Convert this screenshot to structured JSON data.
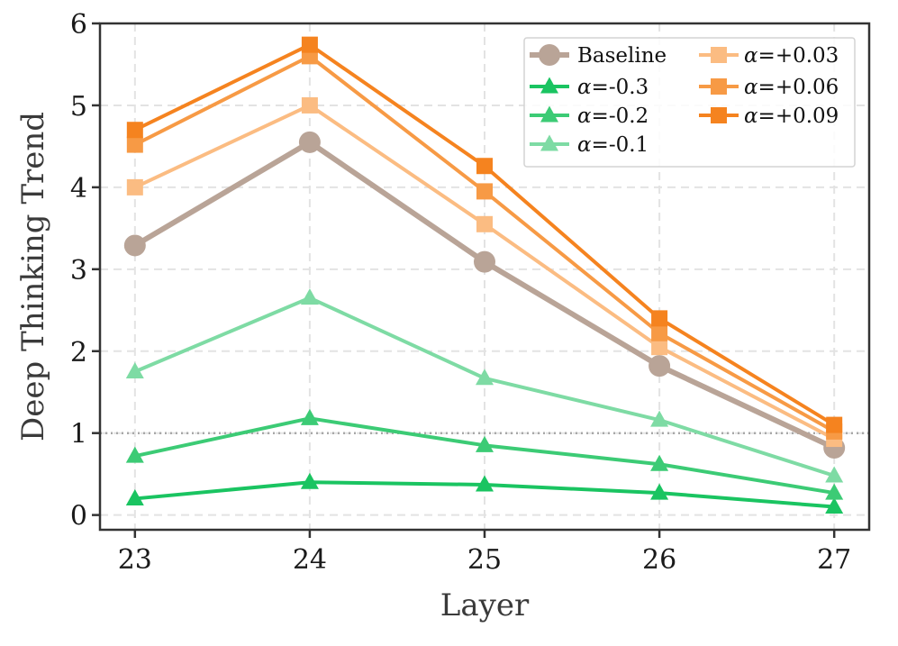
{
  "chart_data": {
    "type": "line",
    "title": "",
    "xlabel": "Layer",
    "ylabel": "Deep Thinking Trend",
    "x": [
      23,
      24,
      25,
      26,
      27
    ],
    "xlim": [
      22.8,
      27.2
    ],
    "ylim": [
      -0.18,
      6.0
    ],
    "yticks": [
      0,
      1,
      2,
      3,
      4,
      5,
      6
    ],
    "grid": true,
    "reference_line": {
      "y": 1,
      "style": "dotted"
    },
    "legend_position": "top-right",
    "series": [
      {
        "name": "Baseline",
        "marker": "circle",
        "color": "#b9a497",
        "values": [
          3.29,
          4.55,
          3.09,
          1.82,
          0.82
        ]
      },
      {
        "name": "α=-0.3",
        "marker": "triangle",
        "color": "#1ac461",
        "values": [
          0.2,
          0.4,
          0.37,
          0.27,
          0.1
        ]
      },
      {
        "name": "α=-0.2",
        "marker": "triangle",
        "color": "#3ccb75",
        "values": [
          0.72,
          1.18,
          0.85,
          0.62,
          0.27
        ]
      },
      {
        "name": "α=-0.1",
        "marker": "triangle",
        "color": "#7edba4",
        "values": [
          1.75,
          2.65,
          1.67,
          1.16,
          0.48
        ]
      },
      {
        "name": "α=+0.03",
        "marker": "square",
        "color": "#fbbc82",
        "values": [
          4.0,
          5.0,
          3.55,
          2.05,
          0.93
        ]
      },
      {
        "name": "α=+0.06",
        "marker": "square",
        "color": "#f79a45",
        "values": [
          4.52,
          5.6,
          3.95,
          2.22,
          1.02
        ]
      },
      {
        "name": "α=+0.09",
        "marker": "square",
        "color": "#f5831f",
        "values": [
          4.7,
          5.74,
          4.26,
          2.4,
          1.1
        ]
      }
    ]
  }
}
